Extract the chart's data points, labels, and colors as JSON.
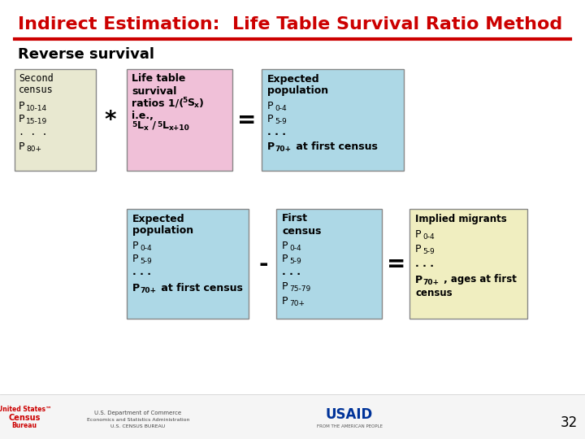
{
  "title": "Indirect Estimation:  Life Table Survival Ratio Method",
  "title_color": "#CC0000",
  "title_fontsize": 16,
  "subtitle": "Reverse survival",
  "subtitle_fontsize": 13,
  "bg_color": "#FFFFFF",
  "separator_color": "#CC0000",
  "box1_bg": "#E8E8D0",
  "box2_bg": "#F0C0D8",
  "box3_bg": "#ADD8E6",
  "box4_bg": "#ADD8E6",
  "box5_bg": "#ADD8E6",
  "box6_bg": "#F0EEC0",
  "page_num": "32"
}
